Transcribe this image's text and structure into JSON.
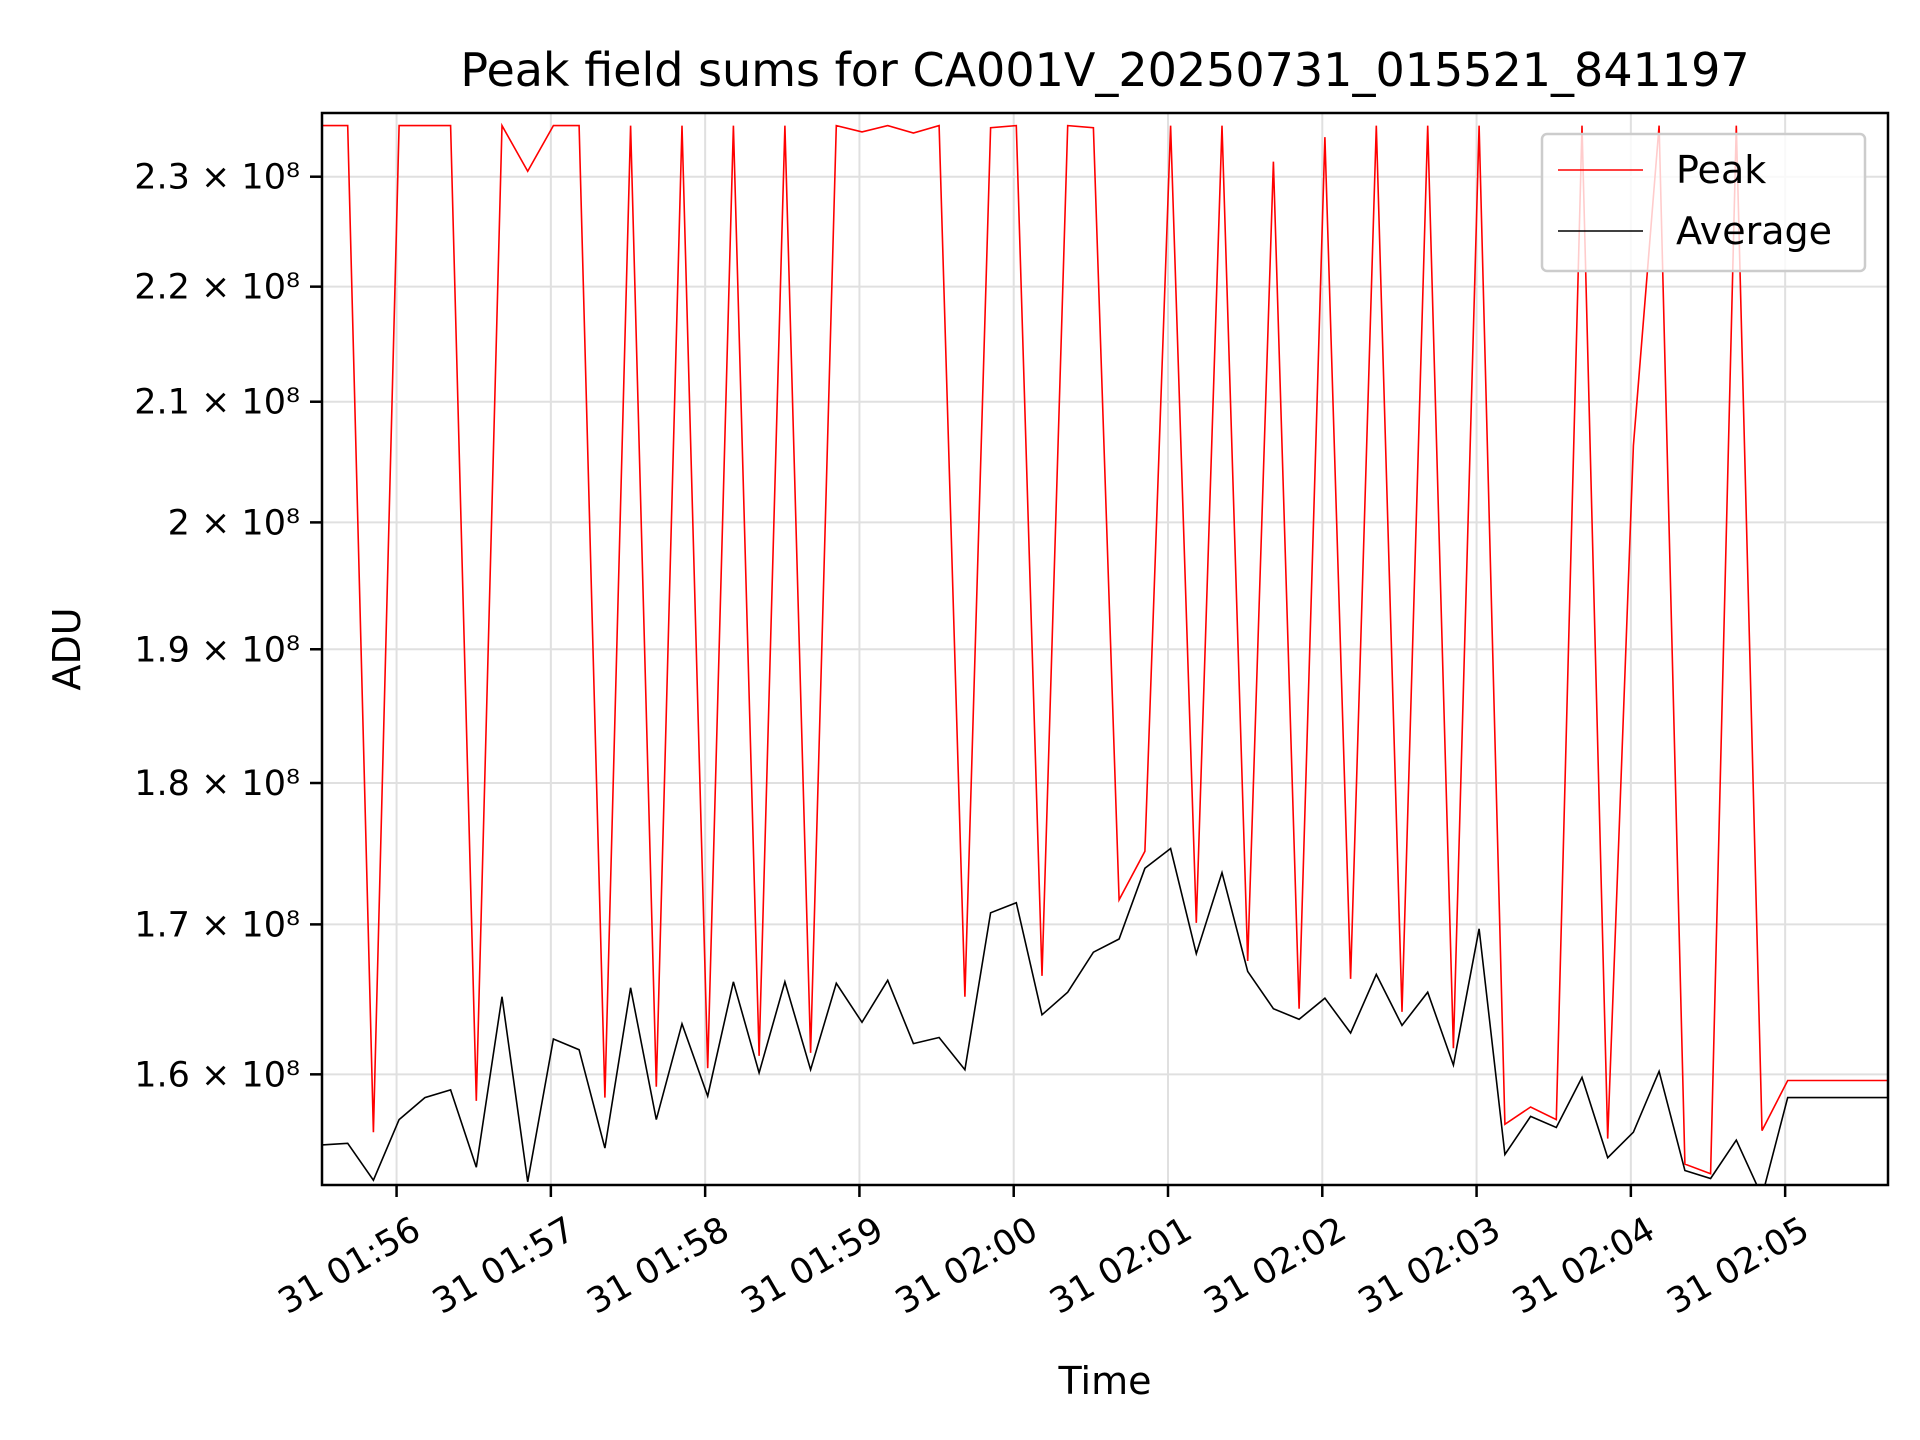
{
  "chart_data": {
    "type": "line",
    "title": "Peak field sums for CA001V_20250731_015521_841197",
    "xlabel": "Time",
    "ylabel": "ADU",
    "y_scale": "log",
    "ylim": [
      153000000,
      236000000
    ],
    "xlim": [
      "01:55:31",
      "02:05:40"
    ],
    "grid": true,
    "legend_position": "top-right",
    "x_ticks": [
      {
        "t": "01:56:00",
        "label": "31 01:56"
      },
      {
        "t": "01:57:00",
        "label": "31 01:57"
      },
      {
        "t": "01:58:00",
        "label": "31 01:58"
      },
      {
        "t": "01:59:00",
        "label": "31 01:59"
      },
      {
        "t": "02:00:00",
        "label": "31 02:00"
      },
      {
        "t": "02:01:00",
        "label": "31 02:01"
      },
      {
        "t": "02:02:00",
        "label": "31 02:02"
      },
      {
        "t": "02:03:00",
        "label": "31 02:03"
      },
      {
        "t": "02:04:00",
        "label": "31 02:04"
      },
      {
        "t": "02:05:00",
        "label": "31 02:05"
      }
    ],
    "y_ticks": [
      {
        "v": 160000000,
        "label": "1.6 × 10⁸"
      },
      {
        "v": 170000000,
        "label": "1.7 × 10⁸"
      },
      {
        "v": 180000000,
        "label": "1.8 × 10⁸"
      },
      {
        "v": 190000000,
        "label": "1.9 × 10⁸"
      },
      {
        "v": 200000000,
        "label": "2 × 10⁸"
      },
      {
        "v": 210000000,
        "label": "2.1 × 10⁸"
      },
      {
        "v": 220000000,
        "label": "2.2 × 10⁸"
      },
      {
        "v": 230000000,
        "label": "2.3 × 10⁸"
      }
    ],
    "x": [
      "01:55:31",
      "01:55:41",
      "01:55:51",
      "01:56:01",
      "01:56:11",
      "01:56:21",
      "01:56:31",
      "01:56:41",
      "01:56:51",
      "01:57:01",
      "01:57:11",
      "01:57:21",
      "01:57:31",
      "01:57:41",
      "01:57:51",
      "01:58:01",
      "01:58:11",
      "01:58:21",
      "01:58:31",
      "01:58:41",
      "01:58:51",
      "01:59:01",
      "01:59:11",
      "01:59:21",
      "01:59:31",
      "01:59:41",
      "01:59:51",
      "02:00:01",
      "02:00:11",
      "02:00:21",
      "02:00:31",
      "02:00:41",
      "02:00:51",
      "02:01:01",
      "02:01:11",
      "02:01:21",
      "02:01:31",
      "02:01:41",
      "02:01:51",
      "02:02:01",
      "02:02:11",
      "02:02:21",
      "02:02:31",
      "02:02:41",
      "02:02:51",
      "02:03:01",
      "02:03:11",
      "02:03:21",
      "02:03:31",
      "02:03:41",
      "02:03:51",
      "02:04:01",
      "02:04:11",
      "02:04:21",
      "02:04:31",
      "02:04:41",
      "02:04:51",
      "02:05:01",
      "02:05:11",
      "02:05:21",
      "02:05:31",
      "02:05:40"
    ],
    "series": [
      {
        "name": "Peak",
        "color": "#ff0000",
        "values": [
          234800000,
          234800000,
          156300000,
          234800000,
          234800000,
          234800000,
          158300000,
          234800000,
          230500000,
          234800000,
          234800000,
          158500000,
          234800000,
          159200000,
          234800000,
          160400000,
          234800000,
          161200000,
          234800000,
          161400000,
          234800000,
          234200000,
          234800000,
          234100000,
          234800000,
          165100000,
          234600000,
          234800000,
          166500000,
          234800000,
          234600000,
          171700000,
          175100000,
          234800000,
          170100000,
          234800000,
          167500000,
          231400000,
          164300000,
          233700000,
          166300000,
          234800000,
          164100000,
          234800000,
          161700000,
          234800000,
          156800000,
          157900000,
          157100000,
          234800000,
          155900000,
          206300000,
          234800000,
          154300000,
          153700000,
          234800000,
          156400000,
          159600000,
          159600000,
          159600000,
          159600000,
          159600000
        ]
      },
      {
        "name": "Average",
        "color": "#000000",
        "values": [
          155500000,
          155600000,
          153300000,
          157100000,
          158500000,
          159000000,
          154100000,
          165100000,
          153200000,
          162300000,
          161600000,
          155300000,
          165700000,
          157100000,
          163300000,
          158600000,
          166100000,
          160100000,
          166100000,
          160300000,
          166000000,
          163400000,
          166200000,
          162000000,
          162400000,
          160300000,
          170800000,
          171500000,
          163900000,
          165400000,
          168100000,
          169000000,
          173900000,
          175300000,
          168000000,
          173600000,
          166800000,
          164300000,
          163600000,
          165000000,
          162700000,
          166600000,
          163200000,
          165400000,
          160600000,
          169700000,
          154900000,
          157300000,
          156600000,
          159800000,
          154700000,
          156300000,
          160200000,
          153900000,
          153400000,
          155800000,
          152300000,
          158500000,
          158500000,
          158500000,
          158500000,
          158500000
        ]
      }
    ]
  }
}
